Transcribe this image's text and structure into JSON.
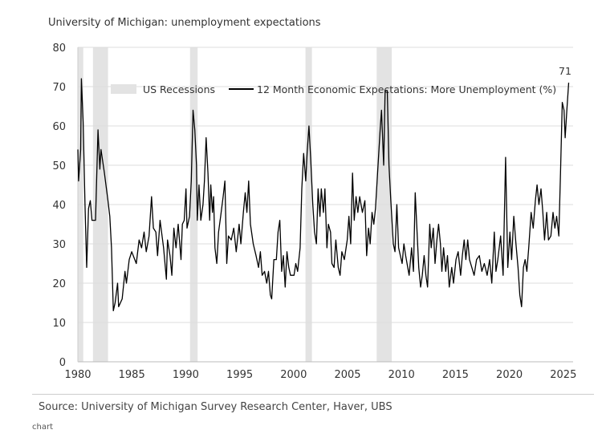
{
  "chart_data": {
    "type": "line",
    "title": "University of Michigan: unemployment expectations",
    "source": "Source: University of Michigan Survey Research Center, Haver, UBS",
    "footer": "chart",
    "xlim": [
      1980,
      2025.8
    ],
    "ylim": [
      0,
      80
    ],
    "xticks": [
      1980,
      1985,
      1990,
      1995,
      2000,
      2005,
      2010,
      2015,
      2020,
      2025
    ],
    "yticks": [
      0,
      10,
      20,
      30,
      40,
      50,
      60,
      70,
      80
    ],
    "grid": true,
    "legend": {
      "placement": "top",
      "entries": [
        "US Recessions",
        "12 Month Economic Expectations: More Unemployment (%)"
      ]
    },
    "end_label": "71",
    "colors": {
      "line": "#000000",
      "recession": "#e3e3e3",
      "grid": "#dddddd"
    },
    "recessions": [
      [
        1980.0,
        1980.5
      ],
      [
        1981.4,
        1982.8
      ],
      [
        1990.4,
        1991.1
      ],
      [
        2001.1,
        2001.7
      ],
      [
        2007.7,
        2009.1
      ]
    ],
    "series": [
      {
        "name": "12 Month Economic Expectations: More Unemployment (%)",
        "points": [
          [
            1980.0,
            54
          ],
          [
            1980.07,
            46
          ],
          [
            1980.26,
            54
          ],
          [
            1980.33,
            72
          ],
          [
            1980.49,
            61
          ],
          [
            1980.66,
            40
          ],
          [
            1980.82,
            24
          ],
          [
            1980.99,
            39
          ],
          [
            1981.15,
            41
          ],
          [
            1981.31,
            36
          ],
          [
            1981.64,
            36
          ],
          [
            1981.87,
            59
          ],
          [
            1982.04,
            49
          ],
          [
            1982.14,
            54
          ],
          [
            1982.46,
            48
          ],
          [
            1982.79,
            41
          ],
          [
            1982.96,
            37
          ],
          [
            1983.12,
            29
          ],
          [
            1983.29,
            13
          ],
          [
            1983.45,
            15
          ],
          [
            1983.68,
            20
          ],
          [
            1983.78,
            14
          ],
          [
            1984.11,
            16
          ],
          [
            1984.37,
            23
          ],
          [
            1984.5,
            20
          ],
          [
            1984.76,
            26
          ],
          [
            1984.99,
            28
          ],
          [
            1985.42,
            25
          ],
          [
            1985.68,
            31
          ],
          [
            1985.91,
            29
          ],
          [
            1986.14,
            33
          ],
          [
            1986.34,
            28
          ],
          [
            1986.6,
            32
          ],
          [
            1986.83,
            42
          ],
          [
            1987.0,
            34
          ],
          [
            1987.23,
            33
          ],
          [
            1987.39,
            27
          ],
          [
            1987.62,
            36
          ],
          [
            1987.95,
            29
          ],
          [
            1988.21,
            21
          ],
          [
            1988.31,
            31
          ],
          [
            1988.54,
            27
          ],
          [
            1988.71,
            22
          ],
          [
            1988.9,
            34
          ],
          [
            1989.1,
            29
          ],
          [
            1989.3,
            35
          ],
          [
            1989.56,
            26
          ],
          [
            1989.69,
            35
          ],
          [
            1989.86,
            36
          ],
          [
            1990.02,
            44
          ],
          [
            1990.12,
            34
          ],
          [
            1990.35,
            37
          ],
          [
            1990.51,
            46
          ],
          [
            1990.68,
            64
          ],
          [
            1990.84,
            59
          ],
          [
            1991.0,
            50
          ],
          [
            1991.07,
            36
          ],
          [
            1991.23,
            45
          ],
          [
            1991.4,
            36
          ],
          [
            1991.6,
            40
          ],
          [
            1991.73,
            46
          ],
          [
            1991.89,
            57
          ],
          [
            1992.06,
            48
          ],
          [
            1992.22,
            36
          ],
          [
            1992.32,
            45
          ],
          [
            1992.48,
            38
          ],
          [
            1992.58,
            42
          ],
          [
            1992.71,
            29
          ],
          [
            1992.88,
            25
          ],
          [
            1993.04,
            33
          ],
          [
            1993.24,
            37
          ],
          [
            1993.47,
            42
          ],
          [
            1993.63,
            46
          ],
          [
            1993.8,
            25
          ],
          [
            1993.96,
            32
          ],
          [
            1994.22,
            31
          ],
          [
            1994.45,
            34
          ],
          [
            1994.68,
            28
          ],
          [
            1994.95,
            35
          ],
          [
            1995.11,
            30
          ],
          [
            1995.34,
            38
          ],
          [
            1995.51,
            43
          ],
          [
            1995.67,
            38
          ],
          [
            1995.83,
            46
          ],
          [
            1996.0,
            35
          ],
          [
            1996.26,
            30
          ],
          [
            1996.52,
            27
          ],
          [
            1996.75,
            24
          ],
          [
            1996.92,
            28
          ],
          [
            1997.08,
            22
          ],
          [
            1997.31,
            23
          ],
          [
            1997.51,
            20
          ],
          [
            1997.67,
            23
          ],
          [
            1997.84,
            17
          ],
          [
            1997.97,
            16
          ],
          [
            1998.17,
            26
          ],
          [
            1998.4,
            26
          ],
          [
            1998.56,
            33
          ],
          [
            1998.72,
            36
          ],
          [
            1998.89,
            23
          ],
          [
            1999.05,
            27
          ],
          [
            1999.22,
            19
          ],
          [
            1999.38,
            28
          ],
          [
            1999.55,
            24
          ],
          [
            1999.71,
            22
          ],
          [
            2000.04,
            22
          ],
          [
            2000.2,
            25
          ],
          [
            2000.37,
            23
          ],
          [
            2000.6,
            29
          ],
          [
            2000.76,
            44
          ],
          [
            2000.93,
            53
          ],
          [
            2001.12,
            46
          ],
          [
            2001.25,
            53
          ],
          [
            2001.42,
            60
          ],
          [
            2001.58,
            52
          ],
          [
            2001.78,
            40
          ],
          [
            2001.94,
            33
          ],
          [
            2002.11,
            30
          ],
          [
            2002.27,
            44
          ],
          [
            2002.44,
            37
          ],
          [
            2002.57,
            44
          ],
          [
            2002.76,
            38
          ],
          [
            2002.9,
            44
          ],
          [
            2003.09,
            29
          ],
          [
            2003.22,
            35
          ],
          [
            2003.42,
            33
          ],
          [
            2003.55,
            25
          ],
          [
            2003.75,
            24
          ],
          [
            2003.91,
            31
          ],
          [
            2004.14,
            24
          ],
          [
            2004.31,
            22
          ],
          [
            2004.47,
            28
          ],
          [
            2004.7,
            26
          ],
          [
            2004.97,
            31
          ],
          [
            2005.13,
            37
          ],
          [
            2005.29,
            30
          ],
          [
            2005.46,
            48
          ],
          [
            2005.62,
            36
          ],
          [
            2005.79,
            42
          ],
          [
            2005.95,
            38
          ],
          [
            2006.12,
            42
          ],
          [
            2006.38,
            38
          ],
          [
            2006.61,
            41
          ],
          [
            2006.77,
            27
          ],
          [
            2006.94,
            34
          ],
          [
            2007.1,
            30
          ],
          [
            2007.27,
            38
          ],
          [
            2007.43,
            35
          ],
          [
            2007.59,
            39
          ],
          [
            2007.76,
            47
          ],
          [
            2008.02,
            59
          ],
          [
            2008.15,
            64
          ],
          [
            2008.35,
            50
          ],
          [
            2008.48,
            69
          ],
          [
            2008.68,
            69
          ],
          [
            2008.84,
            50
          ],
          [
            2009.01,
            41
          ],
          [
            2009.24,
            30
          ],
          [
            2009.4,
            28
          ],
          [
            2009.57,
            40
          ],
          [
            2009.73,
            29
          ],
          [
            2010.06,
            25
          ],
          [
            2010.22,
            30
          ],
          [
            2010.39,
            27
          ],
          [
            2010.71,
            22
          ],
          [
            2010.94,
            29
          ],
          [
            2011.11,
            23
          ],
          [
            2011.27,
            43
          ],
          [
            2011.44,
            33
          ],
          [
            2011.6,
            24
          ],
          [
            2011.77,
            19
          ],
          [
            2011.93,
            22
          ],
          [
            2012.1,
            27
          ],
          [
            2012.26,
            22
          ],
          [
            2012.42,
            19
          ],
          [
            2012.62,
            35
          ],
          [
            2012.75,
            29
          ],
          [
            2012.95,
            34
          ],
          [
            2013.11,
            25
          ],
          [
            2013.28,
            31
          ],
          [
            2013.44,
            35
          ],
          [
            2013.61,
            30
          ],
          [
            2013.74,
            23
          ],
          [
            2013.9,
            29
          ],
          [
            2014.1,
            23
          ],
          [
            2014.26,
            27
          ],
          [
            2014.43,
            19
          ],
          [
            2014.66,
            24
          ],
          [
            2014.82,
            20
          ],
          [
            2015.05,
            26
          ],
          [
            2015.25,
            28
          ],
          [
            2015.48,
            22
          ],
          [
            2015.64,
            27
          ],
          [
            2015.81,
            31
          ],
          [
            2015.97,
            26
          ],
          [
            2016.14,
            31
          ],
          [
            2016.3,
            26
          ],
          [
            2016.73,
            22
          ],
          [
            2016.96,
            26
          ],
          [
            2017.22,
            27
          ],
          [
            2017.45,
            23
          ],
          [
            2017.68,
            25
          ],
          [
            2017.94,
            22
          ],
          [
            2018.17,
            26
          ],
          [
            2018.37,
            20
          ],
          [
            2018.6,
            33
          ],
          [
            2018.76,
            23
          ],
          [
            2018.93,
            26
          ],
          [
            2019.19,
            32
          ],
          [
            2019.42,
            22
          ],
          [
            2019.65,
            52
          ],
          [
            2019.85,
            24
          ],
          [
            2020.05,
            33
          ],
          [
            2020.21,
            26
          ],
          [
            2020.41,
            37
          ],
          [
            2020.61,
            30
          ],
          [
            2020.8,
            24
          ],
          [
            2020.97,
            17
          ],
          [
            2021.13,
            14
          ],
          [
            2021.3,
            24
          ],
          [
            2021.46,
            26
          ],
          [
            2021.62,
            23
          ],
          [
            2021.79,
            29
          ],
          [
            2022.02,
            38
          ],
          [
            2022.21,
            34
          ],
          [
            2022.41,
            41
          ],
          [
            2022.57,
            45
          ],
          [
            2022.74,
            40
          ],
          [
            2022.93,
            44
          ],
          [
            2023.1,
            38
          ],
          [
            2023.26,
            31
          ],
          [
            2023.46,
            38
          ],
          [
            2023.62,
            31
          ],
          [
            2023.85,
            32
          ],
          [
            2024.05,
            38
          ],
          [
            2024.22,
            34
          ],
          [
            2024.38,
            37
          ],
          [
            2024.58,
            32
          ],
          [
            2024.74,
            48
          ],
          [
            2024.9,
            66
          ],
          [
            2025.07,
            64
          ],
          [
            2025.17,
            57
          ],
          [
            2025.33,
            64
          ],
          [
            2025.5,
            71
          ]
        ]
      }
    ]
  }
}
